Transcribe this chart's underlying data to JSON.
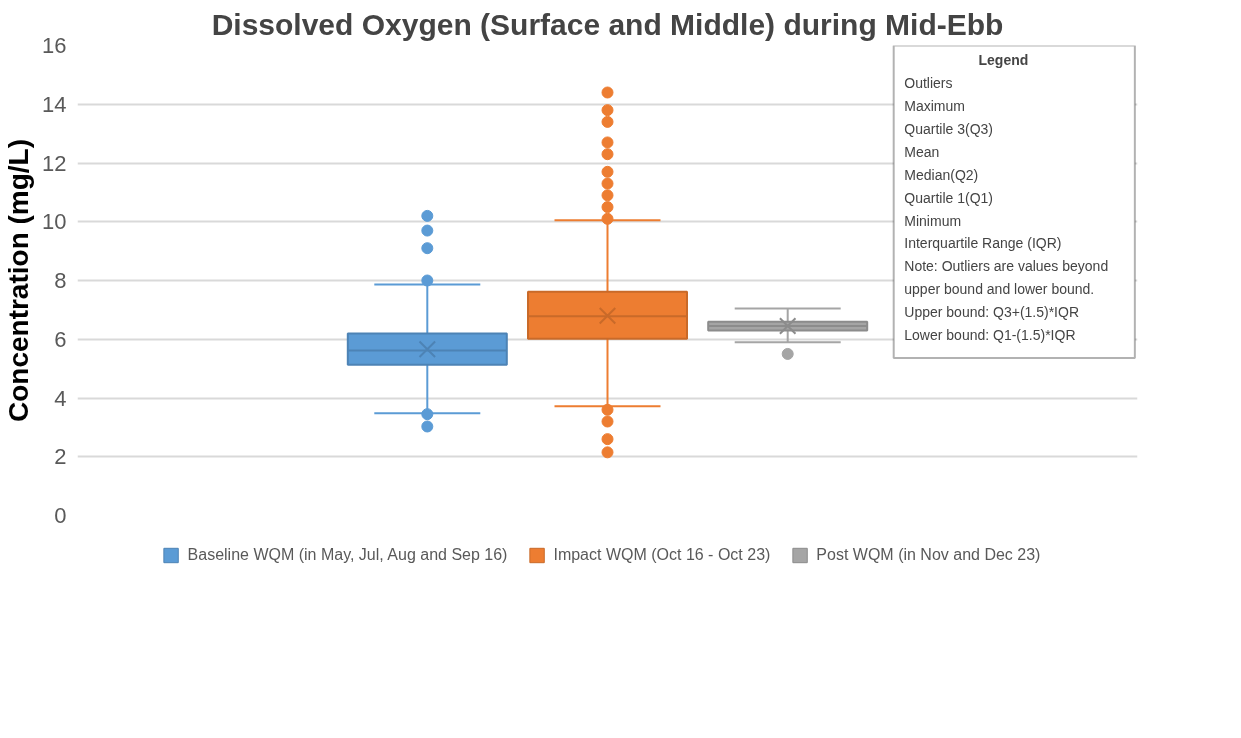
{
  "chart_data": {
    "type": "box",
    "title": "Dissolved Oxygen (Surface and Middle) during Mid-Ebb",
    "ylabel": "Concentration (mg/L)",
    "categories": [
      null
    ],
    "series": [
      {
        "name": "Baseline WQM (in May, Jul, Aug and Sep 16)",
        "color": "#5b9bd5",
        "boxes": [
          {
            "low": 3.48,
            "q1": 5.13,
            "median": 5.62,
            "q3": 6.2,
            "high": 7.86,
            "mean": 5.66,
            "outliers": [
              10.2,
              9.7,
              9.1,
              8.0,
              3.45,
              3.03
            ]
          }
        ]
      },
      {
        "name": "Impact WQM (Oct 16 - Oct 23)",
        "color": "#ed7d31",
        "boxes": [
          {
            "low": 3.72,
            "q1": 6.02,
            "median": 6.78,
            "q3": 7.62,
            "high": 10.05,
            "mean": 6.8,
            "outliers": [
              14.4,
              13.8,
              13.4,
              12.7,
              12.3,
              11.7,
              11.3,
              10.9,
              10.5,
              10.1,
              3.6,
              3.2,
              2.6,
              2.15
            ]
          }
        ]
      },
      {
        "name": "Post WQM (in Nov and Dec 23)",
        "color": "#a5a5a5",
        "boxes": [
          {
            "low": 5.9,
            "q1": 6.3,
            "median": 6.45,
            "q3": 6.6,
            "high": 7.05,
            "mean": 6.45,
            "outliers": [
              5.5
            ]
          }
        ]
      }
    ],
    "ylim": [
      0,
      16
    ],
    "yticks": [
      0,
      2,
      4,
      6,
      8,
      10,
      12,
      14,
      16
    ],
    "grid": "y",
    "tick_labels": "y",
    "legend": "bottom",
    "annotations": [
      "Legend",
      "Outliers",
      "Maximum",
      "Quartile 3(Q3)",
      "Mean",
      "Median(Q2)",
      "Quartile 1(Q1)",
      "Minimum",
      "Interquartile Range (IQR)",
      "Note: Outliers are values beyond",
      "upper bound and lower bound.",
      "Upper bound: Q3+(1.5)*IQR",
      "Lower bound: Q1-(1.5)*IQR"
    ]
  }
}
